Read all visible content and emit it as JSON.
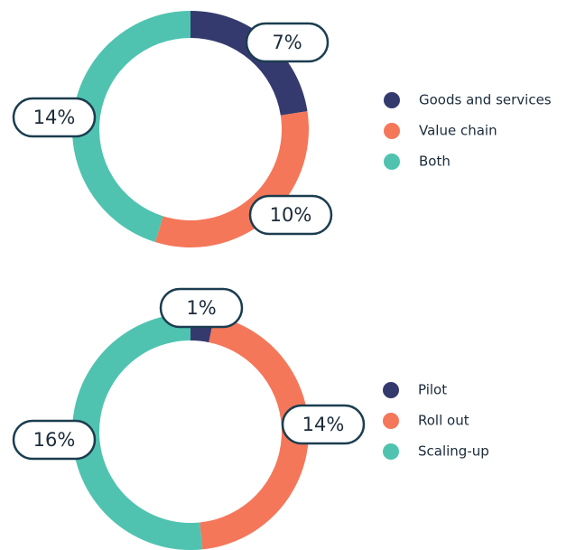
{
  "chart_data": [
    {
      "type": "donut",
      "categories": [
        "Goods and services",
        "Value chain",
        "Both"
      ],
      "values": [
        7,
        10,
        14
      ],
      "value_labels": [
        "7%",
        "10%",
        "14%"
      ],
      "colors": [
        "#353a6e",
        "#f4775a",
        "#4fc3b0"
      ]
    },
    {
      "type": "donut",
      "categories": [
        "Pilot",
        "Roll out",
        "Scaling-up"
      ],
      "values": [
        1,
        14,
        16
      ],
      "value_labels": [
        "1%",
        "14%",
        "16%"
      ],
      "colors": [
        "#353a6e",
        "#f4775a",
        "#4fc3b0"
      ]
    }
  ]
}
